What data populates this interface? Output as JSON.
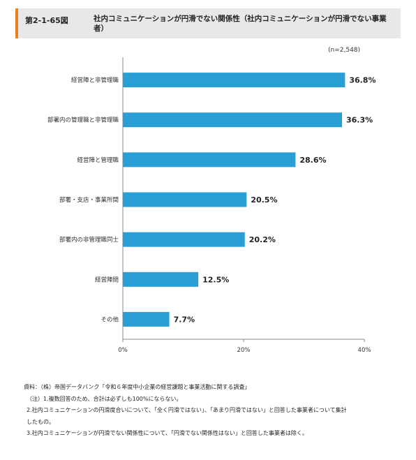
{
  "header": {
    "figure_number": "第2-1-65図",
    "title": "社内コミュニケーションが円滑でない関係性（社内コミュニケーションが円滑でない事業者）"
  },
  "sample_size": "(n=2,548)",
  "chart_data": {
    "type": "bar",
    "orientation": "horizontal",
    "categories": [
      "経営陣と非管理職",
      "部署内の管理職と非管理職",
      "経営陣と管理職",
      "部署・支店・事業所間",
      "部署内の非管理職同士",
      "経営陣間",
      "その他"
    ],
    "values": [
      36.8,
      36.3,
      28.6,
      20.5,
      20.2,
      12.5,
      7.7
    ],
    "value_labels": [
      "36.8%",
      "36.3%",
      "28.6%",
      "20.5%",
      "20.2%",
      "12.5%",
      "7.7%"
    ],
    "xlim": [
      0,
      40
    ],
    "x_ticks": [
      0,
      20,
      40
    ],
    "x_tick_labels": [
      "0%",
      "20%",
      "40%"
    ],
    "bar_color": "#2a9fd6",
    "grid": false
  },
  "notes": [
    "資料：（株）帝国データバンク「令和６年度中小企業の経営課題と事業活動に関する調査」",
    "（注）1.複数回答のため、合計は必ずしも100%にならない。",
    "2.社内コミュニケーションの円滑度合いについて、「全く円滑ではない」、「あまり円滑ではない」と回答した事業者について集計",
    "したもの。",
    "3.社内コミュニケーションが円滑でない関係性について、「円滑でない関係性はない」と回答した事業者は除く。"
  ]
}
